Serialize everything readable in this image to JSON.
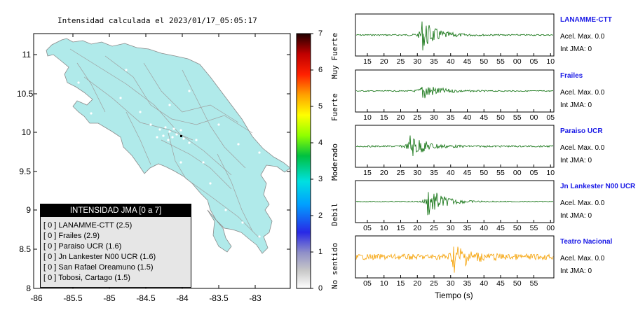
{
  "map": {
    "title": "Intensidad calculada el 2023/01/17_05:05:17",
    "y_ticks": [
      "11",
      "10.5",
      "10",
      "9.5",
      "9",
      "8.5",
      "8"
    ],
    "x_ticks": [
      "-86",
      "-85.5",
      "-85",
      "-84.5",
      "-84",
      "-83.5",
      "-83"
    ],
    "land_color": "#b0eaea",
    "border_color": "#9e9e9e"
  },
  "legend": {
    "header": "INTENSIDAD JMA [0 a 7]",
    "rows": [
      "[ 0 ]  LANAMME-CTT (2.5)",
      "[ 0 ]  Frailes (2.9)",
      "[ 0 ]  Paraiso UCR (1.6)",
      "[ 0 ]  Jn Lankester N00 UCR (1.6)",
      "[ 0 ]  San Rafael Oreamuno (1.5)",
      "[ 0 ]  Tobosi, Cartago (1.5)"
    ]
  },
  "colorbar": {
    "ticks": [
      "7",
      "6",
      "5",
      "4",
      "3",
      "2",
      "1",
      "0"
    ],
    "labels": [
      "Muy Fuerte",
      "Fuerte",
      "Moderado",
      "Debil",
      "No sentido"
    ]
  },
  "stations": [
    {
      "name": "LANAMME-CTT",
      "acc": "Acel. Max. 0.0",
      "int": "Int JMA: 0",
      "color": "#0a6e0a",
      "ticks": [
        "15",
        "20",
        "25",
        "30",
        "35",
        "40",
        "45",
        "50",
        "55",
        "00",
        "05",
        "10"
      ]
    },
    {
      "name": "Frailes",
      "acc": "Acel. Max. 0.0",
      "int": "Int JMA: 0",
      "color": "#0a6e0a",
      "ticks": [
        "10",
        "15",
        "20",
        "25",
        "30",
        "35",
        "40",
        "45",
        "50",
        "55",
        "00",
        "05"
      ]
    },
    {
      "name": "Paraiso UCR",
      "acc": "Acel. Max. 0.0",
      "int": "Int JMA: 0",
      "color": "#0a6e0a",
      "ticks": [
        "15",
        "20",
        "25",
        "30",
        "35",
        "40",
        "45",
        "50",
        "55",
        "00",
        "05",
        "10"
      ]
    },
    {
      "name": "Jn Lankester N00 UCR",
      "acc": "Acel. Max. 0.0",
      "int": "Int JMA: 0",
      "color": "#0a6e0a",
      "ticks": [
        "05",
        "10",
        "15",
        "20",
        "25",
        "30",
        "35",
        "40",
        "45",
        "50",
        "55",
        "00"
      ]
    },
    {
      "name": "Teatro Nacional",
      "acc": "Acel. Max. 0.0",
      "int": "Int JMA: 0",
      "color": "#f5a000",
      "ticks": [
        "05",
        "10",
        "15",
        "20",
        "25",
        "30",
        "35",
        "40",
        "45",
        "50",
        "55"
      ]
    }
  ],
  "x_axis_label": "Tiempo (s)"
}
